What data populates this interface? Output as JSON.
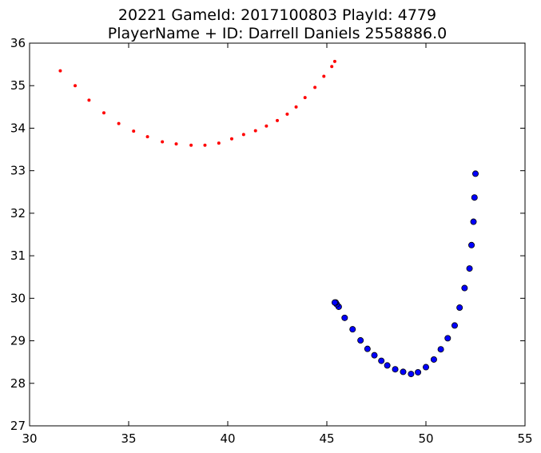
{
  "chart_data": {
    "type": "scatter",
    "title": [
      "20221 GameId: 2017100803 PlayId: 4779",
      "PlayerName + ID: Darrell Daniels 2558886.0"
    ],
    "xlabel": "",
    "ylabel": "",
    "xlim": [
      30,
      55
    ],
    "ylim": [
      27,
      36
    ],
    "xticks": [
      30,
      35,
      40,
      45,
      50,
      55
    ],
    "yticks": [
      27,
      28,
      29,
      30,
      31,
      32,
      33,
      34,
      35,
      36
    ],
    "grid": false,
    "legend": false,
    "series": [
      {
        "color": "#ff0000",
        "marker": "small-dot",
        "points": [
          [
            31.55,
            35.35
          ],
          [
            32.3,
            35.0
          ],
          [
            33.0,
            34.66
          ],
          [
            33.75,
            34.36
          ],
          [
            34.5,
            34.11
          ],
          [
            35.25,
            33.93
          ],
          [
            35.95,
            33.8
          ],
          [
            36.7,
            33.68
          ],
          [
            37.4,
            33.63
          ],
          [
            38.15,
            33.6
          ],
          [
            38.85,
            33.6
          ],
          [
            39.55,
            33.65
          ],
          [
            40.2,
            33.75
          ],
          [
            40.8,
            33.85
          ],
          [
            41.4,
            33.94
          ],
          [
            41.95,
            34.05
          ],
          [
            42.5,
            34.18
          ],
          [
            43.0,
            34.33
          ],
          [
            43.45,
            34.5
          ],
          [
            43.9,
            34.72
          ],
          [
            44.4,
            34.96
          ],
          [
            44.85,
            35.22
          ],
          [
            45.25,
            35.45
          ],
          [
            45.4,
            35.57
          ]
        ]
      },
      {
        "color": "#0000ff",
        "marker": "large-dot",
        "points": [
          [
            52.5,
            32.93
          ],
          [
            52.45,
            32.37
          ],
          [
            52.4,
            31.8
          ],
          [
            52.3,
            31.25
          ],
          [
            52.2,
            30.7
          ],
          [
            51.95,
            30.24
          ],
          [
            51.7,
            29.78
          ],
          [
            51.45,
            29.36
          ],
          [
            51.1,
            29.06
          ],
          [
            50.75,
            28.8
          ],
          [
            50.4,
            28.56
          ],
          [
            50.0,
            28.38
          ],
          [
            49.6,
            28.26
          ],
          [
            49.25,
            28.22
          ],
          [
            48.85,
            28.27
          ],
          [
            48.45,
            28.33
          ],
          [
            48.05,
            28.42
          ],
          [
            47.75,
            28.53
          ],
          [
            47.4,
            28.66
          ],
          [
            47.05,
            28.81
          ],
          [
            46.7,
            29.01
          ],
          [
            46.3,
            29.27
          ],
          [
            45.9,
            29.54
          ],
          [
            45.6,
            29.8
          ],
          [
            45.5,
            29.86
          ],
          [
            45.45,
            29.9
          ],
          [
            45.4,
            29.9
          ]
        ]
      }
    ]
  }
}
